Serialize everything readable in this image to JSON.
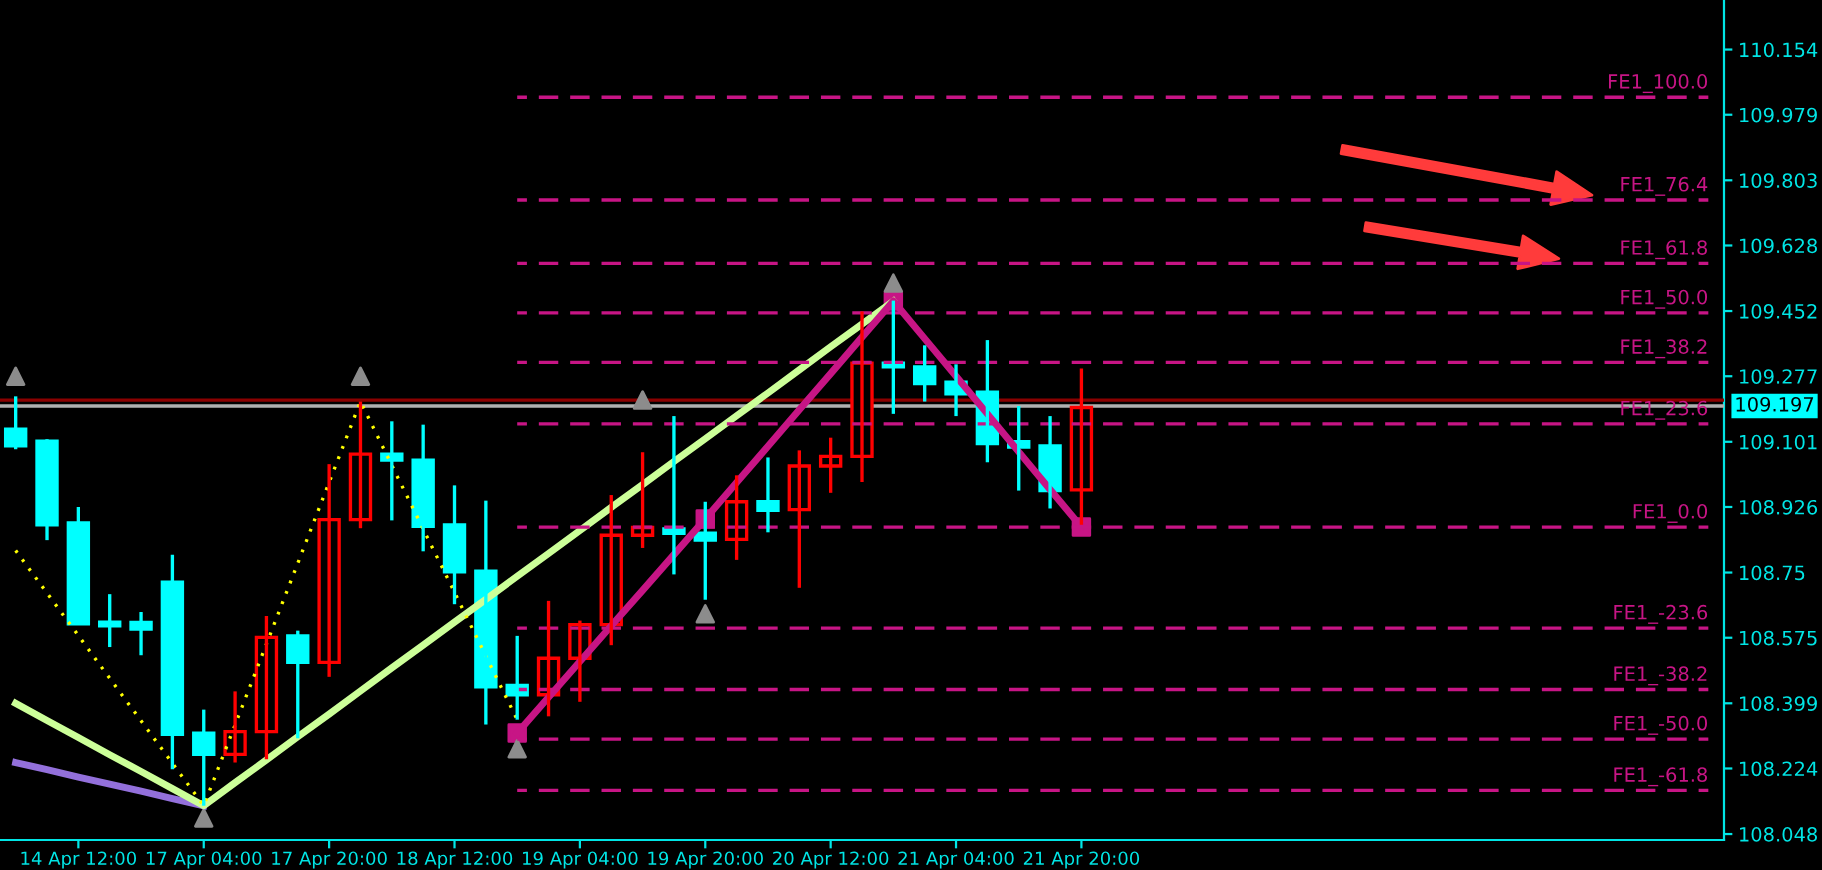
{
  "chart_data": {
    "type": "candlestick",
    "categories": [
      null,
      null,
      "14 Apr 12:00",
      null,
      null,
      null,
      "17 Apr 04:00",
      null,
      null,
      null,
      "17 Apr 20:00",
      null,
      null,
      null,
      "18 Apr 12:00",
      null,
      null,
      null,
      "19 Apr 04:00",
      null,
      null,
      null,
      "19 Apr 20:00",
      null,
      null,
      null,
      "20 Apr 12:00",
      null,
      null,
      null,
      "21 Apr 04:00",
      null,
      null,
      null,
      "21 Apr 20:00",
      null,
      null,
      null,
      null,
      null,
      null,
      null,
      null,
      null,
      null,
      null,
      null,
      null,
      null,
      null,
      null,
      null,
      null,
      null,
      null
    ],
    "ohlc": [
      [
        109.135,
        109.223,
        109.081,
        109.09
      ],
      [
        109.103,
        109.108,
        108.837,
        108.878
      ],
      [
        108.883,
        108.926,
        108.612,
        108.612
      ],
      [
        108.617,
        108.692,
        108.55,
        108.607
      ],
      [
        108.616,
        108.644,
        108.528,
        108.598
      ],
      [
        108.724,
        108.798,
        108.222,
        108.316
      ],
      [
        108.319,
        108.382,
        108.124,
        108.262
      ],
      [
        108.262,
        108.431,
        108.24,
        108.323
      ],
      [
        108.323,
        108.633,
        108.249,
        108.576
      ],
      [
        108.58,
        108.594,
        108.305,
        108.509
      ],
      [
        108.509,
        109.041,
        108.47,
        108.892
      ],
      [
        108.892,
        109.209,
        108.869,
        109.068
      ],
      [
        109.068,
        109.156,
        108.89,
        109.052
      ],
      [
        109.052,
        109.147,
        108.807,
        108.874
      ],
      [
        108.878,
        108.984,
        108.665,
        108.752
      ],
      [
        108.754,
        108.943,
        108.342,
        108.443
      ],
      [
        108.447,
        108.58,
        108.355,
        108.422
      ],
      [
        108.422,
        108.674,
        108.364,
        108.52
      ],
      [
        108.52,
        108.621,
        108.403,
        108.61
      ],
      [
        108.61,
        108.958,
        108.555,
        108.85
      ],
      [
        108.85,
        109.073,
        108.816,
        108.871
      ],
      [
        108.867,
        109.17,
        108.745,
        108.855
      ],
      [
        108.856,
        108.94,
        108.677,
        108.837
      ],
      [
        108.839,
        109.011,
        108.784,
        108.94
      ],
      [
        108.94,
        109.059,
        108.858,
        108.917
      ],
      [
        108.919,
        109.078,
        108.709,
        109.036
      ],
      [
        109.036,
        109.112,
        108.964,
        109.062
      ],
      [
        109.062,
        109.451,
        108.993,
        109.312
      ],
      [
        109.312,
        109.48,
        109.176,
        109.302
      ],
      [
        109.302,
        109.36,
        109.209,
        109.257
      ],
      [
        109.261,
        109.309,
        109.17,
        109.23
      ],
      [
        109.234,
        109.374,
        109.046,
        109.096
      ],
      [
        109.101,
        109.197,
        108.97,
        109.087
      ],
      [
        109.09,
        109.17,
        108.922,
        108.97
      ],
      [
        108.972,
        109.298,
        108.878,
        109.193
      ],
      null,
      null,
      null,
      null,
      null,
      null,
      null,
      null,
      null,
      null,
      null,
      null,
      null,
      null,
      null,
      null,
      null,
      null,
      null,
      null
    ],
    "colors": [
      "#00ffff",
      "#00ffff",
      "#00ffff",
      "#00ffff",
      "#00ffff",
      "#00ffff",
      "#00ffff",
      "#ff0000",
      "#ff0000",
      "#00ffff",
      "#ff0000",
      "#ff0000",
      "#00ffff",
      "#00ffff",
      "#00ffff",
      "#00ffff",
      "#00ffff",
      "#ff0000",
      "#ff0000",
      "#ff0000",
      "#ff0000",
      "#00ffff",
      "#00ffff",
      "#ff0000",
      "#00ffff",
      "#ff0000",
      "#ff0000",
      "#ff0000",
      "#00ffff",
      "#00ffff",
      "#00ffff",
      "#00ffff",
      "#00ffff",
      "#00ffff",
      "#ff0000",
      null,
      null,
      null,
      null,
      null,
      null,
      null,
      null,
      null,
      null,
      null,
      null,
      null,
      null,
      null,
      null,
      null,
      null,
      null,
      null
    ],
    "series": [
      {
        "type": "line",
        "color": "#9370db",
        "values": [
          108.24,
          108.221,
          108.201,
          108.182,
          108.163,
          108.143,
          108.124,
          null,
          null,
          null,
          null,
          null,
          null,
          null,
          null,
          null,
          null,
          null,
          null,
          null,
          null,
          null,
          null,
          null,
          null,
          null,
          null,
          null,
          null,
          null,
          null,
          null,
          null,
          null,
          null,
          null,
          null,
          null,
          null,
          null,
          null,
          null,
          null,
          null,
          null,
          null,
          null,
          null,
          null,
          null,
          null,
          null,
          null,
          null,
          null
        ]
      },
      {
        "type": "line",
        "color": "#ccff99",
        "values": [
          108.399,
          108.353,
          108.307,
          108.261,
          108.216,
          108.17,
          108.124,
          108.186,
          108.247,
          108.309,
          108.37,
          108.432,
          108.494,
          108.555,
          108.617,
          108.678,
          108.74,
          108.801,
          108.863,
          108.925,
          108.986,
          109.048,
          109.109,
          109.171,
          109.232,
          109.294,
          109.356,
          109.417,
          109.479,
          null,
          null,
          null,
          null,
          null,
          null,
          null,
          null,
          null,
          null,
          null,
          null,
          null,
          null,
          null,
          null,
          null,
          null,
          null,
          null,
          null,
          null,
          null,
          null,
          null,
          null
        ]
      },
      {
        "type": "line",
        "color": "#ffff00",
        "line_style": "dotted",
        "values": [
          108.809,
          108.695,
          108.581,
          108.466,
          108.352,
          108.238,
          108.124,
          108.341,
          108.558,
          108.775,
          108.992,
          109.209,
          109.038,
          108.867,
          108.697,
          108.526,
          108.355,
          null,
          null,
          null,
          null,
          null,
          null,
          null,
          null,
          null,
          null,
          null,
          null,
          null,
          null,
          null,
          null,
          null,
          null,
          null,
          null,
          null,
          null,
          null,
          null,
          null,
          null,
          null,
          null,
          null,
          null,
          null,
          null,
          null,
          null,
          null,
          null,
          null,
          null
        ]
      },
      {
        "type": "line",
        "color": "#c71585",
        "values": [
          null,
          null,
          null,
          null,
          null,
          null,
          null,
          null,
          null,
          null,
          null,
          null,
          null,
          null,
          null,
          null,
          108.319,
          108.415,
          108.511,
          108.607,
          108.702,
          108.798,
          108.894,
          108.992,
          109.089,
          109.187,
          109.284,
          109.382,
          109.479,
          109.378,
          109.277,
          109.176,
          109.074,
          108.973,
          108.872,
          null,
          null,
          null,
          null,
          null,
          null,
          null,
          null,
          null,
          null,
          null,
          null,
          null,
          null,
          null,
          null,
          null,
          null,
          null,
          null
        ]
      },
      {
        "type": "scatter",
        "color": "#c71585",
        "marker": "square",
        "values": [
          null,
          null,
          null,
          null,
          null,
          null,
          null,
          null,
          null,
          null,
          null,
          null,
          null,
          null,
          null,
          null,
          108.319,
          null,
          null,
          null,
          null,
          null,
          108.894,
          null,
          null,
          null,
          null,
          null,
          109.479,
          null,
          null,
          null,
          null,
          null,
          108.872,
          null,
          null,
          null,
          null,
          null,
          null,
          null,
          null,
          null,
          null,
          null,
          null,
          null,
          null,
          null,
          null,
          null,
          null,
          null,
          null
        ]
      },
      {
        "type": "scatter",
        "color": "#8c8c8c",
        "marker": "triangle",
        "values": [
          109.277,
          null,
          null,
          null,
          null,
          null,
          null,
          null,
          null,
          null,
          null,
          109.277,
          null,
          null,
          null,
          null,
          null,
          null,
          null,
          null,
          109.213,
          null,
          null,
          null,
          null,
          null,
          null,
          null,
          109.527,
          null,
          null,
          null,
          null,
          null,
          null,
          null,
          null,
          null,
          null,
          null,
          null,
          null,
          null,
          null,
          null,
          null,
          null,
          null,
          null,
          null,
          null,
          null,
          null,
          null,
          null
        ]
      },
      {
        "type": "scatter",
        "color": "#8c8c8c",
        "marker": "triangle",
        "values": [
          null,
          null,
          null,
          null,
          null,
          null,
          108.091,
          null,
          null,
          null,
          null,
          null,
          null,
          null,
          null,
          null,
          108.277,
          null,
          null,
          null,
          null,
          null,
          108.639,
          null,
          null,
          null,
          null,
          null,
          null,
          null,
          null,
          null,
          null,
          null,
          null,
          null,
          null,
          null,
          null,
          null,
          null,
          null,
          null,
          null,
          null,
          null,
          null,
          null,
          null,
          null,
          null,
          null,
          null,
          null,
          null
        ]
      },
      {
        "type": "line",
        "name": "FE1_100.0",
        "color": "#c71585",
        "line_style": "dashed",
        "values": [
          null,
          null,
          null,
          null,
          null,
          null,
          null,
          null,
          null,
          null,
          null,
          null,
          null,
          null,
          null,
          null,
          110.026,
          110.026,
          110.026,
          110.026,
          110.026,
          110.026,
          110.026,
          110.026,
          110.026,
          110.026,
          110.026,
          110.026,
          110.026,
          110.026,
          110.026,
          110.026,
          110.026,
          110.026,
          110.026,
          110.026,
          110.026,
          110.026,
          110.026,
          110.026,
          110.026,
          110.026,
          110.026,
          110.026,
          110.026,
          110.026,
          110.026,
          110.026,
          110.026,
          110.026,
          110.026,
          110.026,
          110.026,
          110.026,
          110.026
        ]
      },
      {
        "type": "line",
        "name": "FE1_76.4",
        "color": "#c71585",
        "line_style": "dashed",
        "values": [
          null,
          null,
          null,
          null,
          null,
          null,
          null,
          null,
          null,
          null,
          null,
          null,
          null,
          null,
          null,
          null,
          109.75,
          109.75,
          109.75,
          109.75,
          109.75,
          109.75,
          109.75,
          109.75,
          109.75,
          109.75,
          109.75,
          109.75,
          109.75,
          109.75,
          109.75,
          109.75,
          109.75,
          109.75,
          109.75,
          109.75,
          109.75,
          109.75,
          109.75,
          109.75,
          109.75,
          109.75,
          109.75,
          109.75,
          109.75,
          109.75,
          109.75,
          109.75,
          109.75,
          109.75,
          109.75,
          109.75,
          109.75,
          109.75,
          109.75
        ]
      },
      {
        "type": "line",
        "name": "FE1_61.8",
        "color": "#c71585",
        "line_style": "dashed",
        "values": [
          null,
          null,
          null,
          null,
          null,
          null,
          null,
          null,
          null,
          null,
          null,
          null,
          null,
          null,
          null,
          null,
          109.58,
          109.58,
          109.58,
          109.58,
          109.58,
          109.58,
          109.58,
          109.58,
          109.58,
          109.58,
          109.58,
          109.58,
          109.58,
          109.58,
          109.58,
          109.58,
          109.58,
          109.58,
          109.58,
          109.58,
          109.58,
          109.58,
          109.58,
          109.58,
          109.58,
          109.58,
          109.58,
          109.58,
          109.58,
          109.58,
          109.58,
          109.58,
          109.58,
          109.58,
          109.58,
          109.58,
          109.58,
          109.58,
          109.58
        ]
      },
      {
        "type": "line",
        "name": "FE1_50.0",
        "color": "#c71585",
        "line_style": "dashed",
        "values": [
          null,
          null,
          null,
          null,
          null,
          null,
          null,
          null,
          null,
          null,
          null,
          null,
          null,
          null,
          null,
          null,
          109.447,
          109.447,
          109.447,
          109.447,
          109.447,
          109.447,
          109.447,
          109.447,
          109.447,
          109.447,
          109.447,
          109.447,
          109.447,
          109.447,
          109.447,
          109.447,
          109.447,
          109.447,
          109.447,
          109.447,
          109.447,
          109.447,
          109.447,
          109.447,
          109.447,
          109.447,
          109.447,
          109.447,
          109.447,
          109.447,
          109.447,
          109.447,
          109.447,
          109.447,
          109.447,
          109.447,
          109.447,
          109.447,
          109.447
        ]
      },
      {
        "type": "line",
        "name": "FE1_38.2",
        "color": "#c71585",
        "line_style": "dashed",
        "values": [
          null,
          null,
          null,
          null,
          null,
          null,
          null,
          null,
          null,
          null,
          null,
          null,
          null,
          null,
          null,
          null,
          109.314,
          109.314,
          109.314,
          109.314,
          109.314,
          109.314,
          109.314,
          109.314,
          109.314,
          109.314,
          109.314,
          109.314,
          109.314,
          109.314,
          109.314,
          109.314,
          109.314,
          109.314,
          109.314,
          109.314,
          109.314,
          109.314,
          109.314,
          109.314,
          109.314,
          109.314,
          109.314,
          109.314,
          109.314,
          109.314,
          109.314,
          109.314,
          109.314,
          109.314,
          109.314,
          109.314,
          109.314,
          109.314,
          109.314
        ]
      },
      {
        "type": "line",
        "name": "FE1_23.6",
        "color": "#c71585",
        "line_style": "dashed",
        "values": [
          null,
          null,
          null,
          null,
          null,
          null,
          null,
          null,
          null,
          null,
          null,
          null,
          null,
          null,
          null,
          null,
          109.149,
          109.149,
          109.149,
          109.149,
          109.149,
          109.149,
          109.149,
          109.149,
          109.149,
          109.149,
          109.149,
          109.149,
          109.149,
          109.149,
          109.149,
          109.149,
          109.149,
          109.149,
          109.149,
          109.149,
          109.149,
          109.149,
          109.149,
          109.149,
          109.149,
          109.149,
          109.149,
          109.149,
          109.149,
          109.149,
          109.149,
          109.149,
          109.149,
          109.149,
          109.149,
          109.149,
          109.149,
          109.149,
          109.149
        ]
      },
      {
        "type": "line",
        "name": "FE1_0.0",
        "color": "#c71585",
        "line_style": "dashed",
        "values": [
          null,
          null,
          null,
          null,
          null,
          null,
          null,
          null,
          null,
          null,
          null,
          null,
          null,
          null,
          null,
          null,
          108.872,
          108.872,
          108.872,
          108.872,
          108.872,
          108.872,
          108.872,
          108.872,
          108.872,
          108.872,
          108.872,
          108.872,
          108.872,
          108.872,
          108.872,
          108.872,
          108.872,
          108.872,
          108.872,
          108.872,
          108.872,
          108.872,
          108.872,
          108.872,
          108.872,
          108.872,
          108.872,
          108.872,
          108.872,
          108.872,
          108.872,
          108.872,
          108.872,
          108.872,
          108.872,
          108.872,
          108.872,
          108.872,
          108.872
        ]
      },
      {
        "type": "line",
        "name": "FE1_-23.6",
        "color": "#c71585",
        "line_style": "dashed",
        "values": [
          null,
          null,
          null,
          null,
          null,
          null,
          null,
          null,
          null,
          null,
          null,
          null,
          null,
          null,
          null,
          null,
          108.601,
          108.601,
          108.601,
          108.601,
          108.601,
          108.601,
          108.601,
          108.601,
          108.601,
          108.601,
          108.601,
          108.601,
          108.601,
          108.601,
          108.601,
          108.601,
          108.601,
          108.601,
          108.601,
          108.601,
          108.601,
          108.601,
          108.601,
          108.601,
          108.601,
          108.601,
          108.601,
          108.601,
          108.601,
          108.601,
          108.601,
          108.601,
          108.601,
          108.601,
          108.601,
          108.601,
          108.601,
          108.601,
          108.601
        ]
      },
      {
        "type": "line",
        "name": "FE1_-38.2",
        "color": "#c71585",
        "line_style": "dashed",
        "values": [
          null,
          null,
          null,
          null,
          null,
          null,
          null,
          null,
          null,
          null,
          null,
          null,
          null,
          null,
          null,
          null,
          108.436,
          108.436,
          108.436,
          108.436,
          108.436,
          108.436,
          108.436,
          108.436,
          108.436,
          108.436,
          108.436,
          108.436,
          108.436,
          108.436,
          108.436,
          108.436,
          108.436,
          108.436,
          108.436,
          108.436,
          108.436,
          108.436,
          108.436,
          108.436,
          108.436,
          108.436,
          108.436,
          108.436,
          108.436,
          108.436,
          108.436,
          108.436,
          108.436,
          108.436,
          108.436,
          108.436,
          108.436,
          108.436,
          108.436
        ]
      },
      {
        "type": "line",
        "name": "FE1_-50.0",
        "color": "#c71585",
        "line_style": "dashed",
        "values": [
          null,
          null,
          null,
          null,
          null,
          null,
          null,
          null,
          null,
          null,
          null,
          null,
          null,
          null,
          null,
          null,
          108.303,
          108.303,
          108.303,
          108.303,
          108.303,
          108.303,
          108.303,
          108.303,
          108.303,
          108.303,
          108.303,
          108.303,
          108.303,
          108.303,
          108.303,
          108.303,
          108.303,
          108.303,
          108.303,
          108.303,
          108.303,
          108.303,
          108.303,
          108.303,
          108.303,
          108.303,
          108.303,
          108.303,
          108.303,
          108.303,
          108.303,
          108.303,
          108.303,
          108.303,
          108.303,
          108.303,
          108.303,
          108.303,
          108.303
        ]
      },
      {
        "type": "line",
        "name": "FE1_-61.8",
        "color": "#c71585",
        "line_style": "dashed",
        "values": [
          null,
          null,
          null,
          null,
          null,
          null,
          null,
          null,
          null,
          null,
          null,
          null,
          null,
          null,
          null,
          null,
          108.165,
          108.165,
          108.165,
          108.165,
          108.165,
          108.165,
          108.165,
          108.165,
          108.165,
          108.165,
          108.165,
          108.165,
          108.165,
          108.165,
          108.165,
          108.165,
          108.165,
          108.165,
          108.165,
          108.165,
          108.165,
          108.165,
          108.165,
          108.165,
          108.165,
          108.165,
          108.165,
          108.165,
          108.165,
          108.165,
          108.165,
          108.165,
          108.165,
          108.165,
          108.165,
          108.165,
          108.165,
          108.165,
          108.165
        ]
      }
    ],
    "ref_lines": [
      {
        "axis": "y",
        "value": 109.213,
        "color": "#8b0000",
        "line_style": "solid"
      },
      {
        "axis": "y",
        "value": 109.197,
        "color": "#b0b0b0",
        "line_style": "solid",
        "label": "109.197"
      }
    ],
    "ylim": [
      108.032,
      110.287
    ],
    "yticks": [
      110.154,
      109.979,
      109.803,
      109.628,
      109.452,
      109.277,
      109.101,
      108.926,
      108.75,
      108.575,
      108.399,
      108.224,
      108.048
    ],
    "grid": false,
    "legend": false
  }
}
